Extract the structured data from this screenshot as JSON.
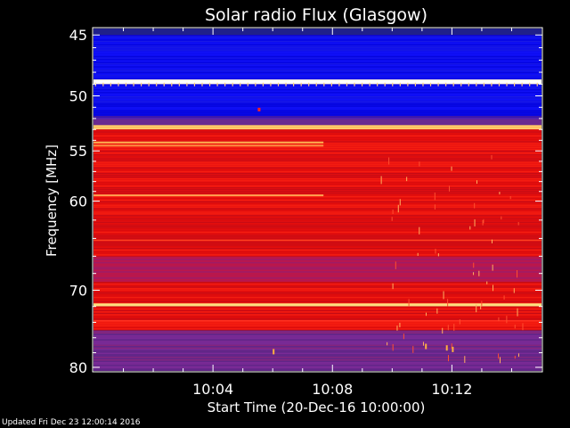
{
  "chart_data": {
    "type": "heatmap",
    "title": "Solar radio Flux (Glasgow)",
    "xlabel": "Start Time (20-Dec-16 10:00:00)",
    "ylabel": "Frequency [MHz]",
    "y_ticks": [
      45,
      50,
      55,
      60,
      70,
      80
    ],
    "y_tick_labels": [
      "45",
      "50",
      "55",
      "60",
      "70",
      "80"
    ],
    "x_ticks": [
      "10:04",
      "10:08",
      "10:12"
    ],
    "x_range": [
      "10:00",
      "10:15"
    ],
    "y_range_mhz": [
      44.5,
      80.5
    ],
    "y_scale": "log",
    "colormap": [
      "#1a1a8c",
      "#0000ff",
      "#c81e1e",
      "#ff0000",
      "#ffd060",
      "#ffffff"
    ],
    "bands": [
      {
        "f_start": 44.5,
        "f_end": 45.0,
        "level": "dark-blue"
      },
      {
        "f_start": 45.0,
        "f_end": 48.6,
        "level": "blue"
      },
      {
        "f_start": 48.6,
        "f_end": 49.0,
        "level": "white"
      },
      {
        "f_start": 49.0,
        "f_end": 51.8,
        "level": "blue"
      },
      {
        "f_start": 51.8,
        "f_end": 52.6,
        "level": "purple"
      },
      {
        "f_start": 52.6,
        "f_end": 53.0,
        "level": "yellow"
      },
      {
        "f_start": 53.0,
        "f_end": 66.0,
        "level": "red"
      },
      {
        "f_start": 66.0,
        "f_end": 69.0,
        "level": "purple-red"
      },
      {
        "f_start": 69.0,
        "f_end": 71.6,
        "level": "red"
      },
      {
        "f_start": 71.6,
        "f_end": 72.0,
        "level": "yellow"
      },
      {
        "f_start": 72.0,
        "f_end": 75.0,
        "level": "red"
      },
      {
        "f_start": 75.0,
        "f_end": 80.5,
        "level": "purple"
      }
    ]
  },
  "footer": {
    "updated": "Updated Fri Dec 23 12:00:14 2016"
  }
}
